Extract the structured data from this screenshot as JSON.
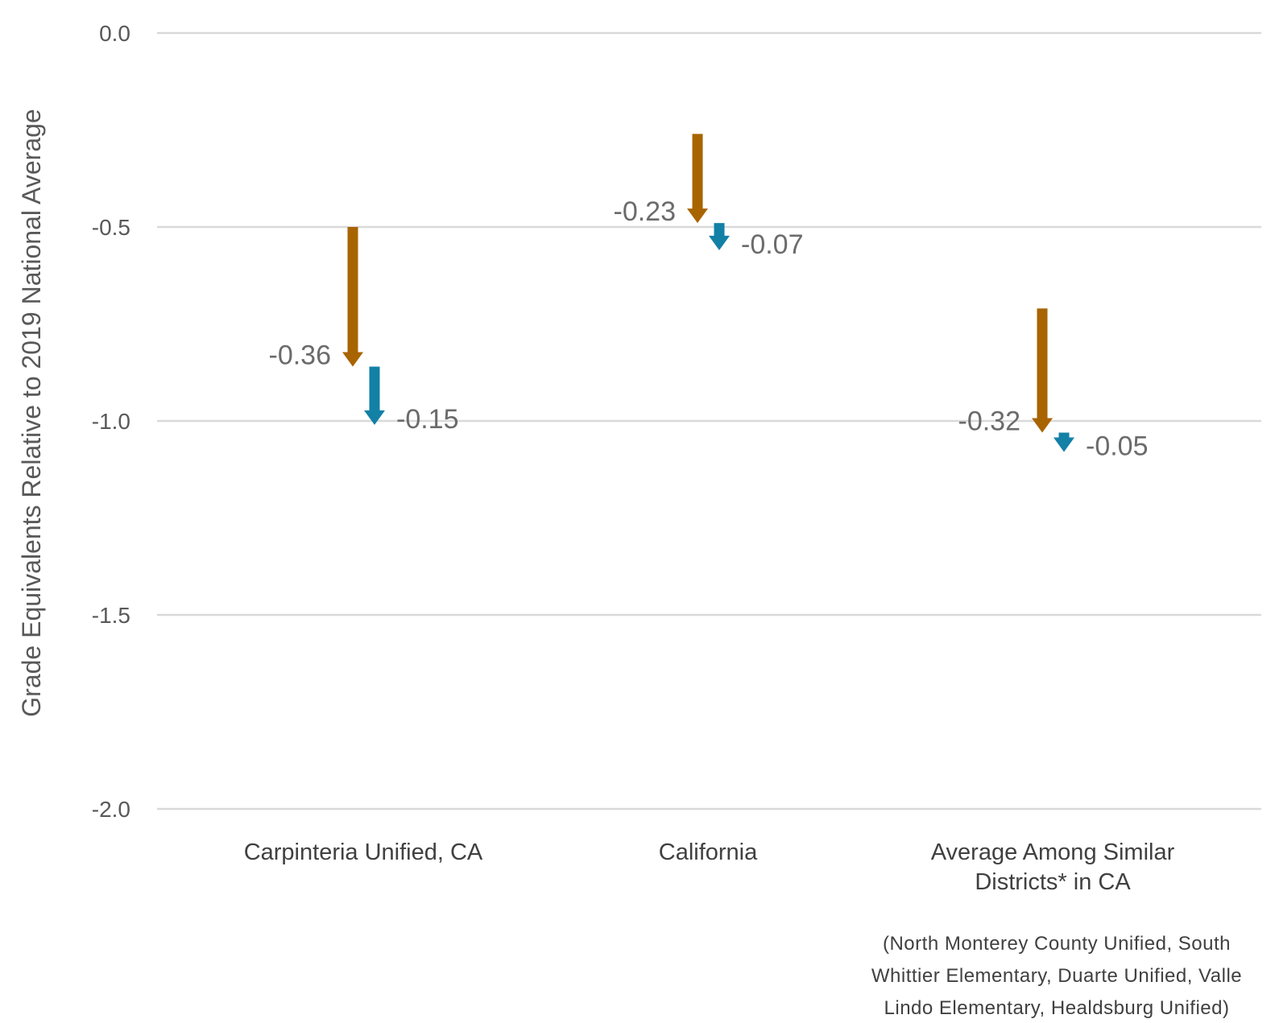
{
  "chart_data": {
    "type": "arrow",
    "ylabel": "Grade Equivalents Relative to 2019 National Average",
    "ylim": [
      -2.0,
      0.0
    ],
    "yticks": [
      0.0,
      -0.5,
      -1.0,
      -1.5,
      -2.0
    ],
    "ytick_labels": [
      "0.0",
      "-0.5",
      "-1.0",
      "-1.5",
      "-2.0"
    ],
    "grid": true,
    "categories": [
      {
        "label_lines": [
          "Carpinteria Unified, CA"
        ]
      },
      {
        "label_lines": [
          "California"
        ]
      },
      {
        "label_lines": [
          "Average Among Similar",
          "Districts* in CA"
        ]
      }
    ],
    "series": [
      {
        "color": "#A86400",
        "points": [
          {
            "start": -0.5,
            "change": -0.36,
            "label": "-0.36"
          },
          {
            "start": -0.26,
            "change": -0.23,
            "label": "-0.23"
          },
          {
            "start": -0.71,
            "change": -0.32,
            "label": "-0.32"
          }
        ]
      },
      {
        "color": "#1380A6",
        "points": [
          {
            "start": -0.86,
            "change": -0.15,
            "label": "-0.15"
          },
          {
            "start": -0.49,
            "change": -0.07,
            "label": "-0.07"
          },
          {
            "start": -1.03,
            "change": -0.05,
            "label": "-0.05"
          }
        ]
      }
    ],
    "note_lines": [
      "(North Monterey County Unified, South",
      "Whittier Elementary, Duarte Unified, Valle",
      "Lindo Elementary, Healdsburg Unified)"
    ]
  },
  "colors": {
    "grid": "#D9D9D9",
    "text": "#595959"
  }
}
